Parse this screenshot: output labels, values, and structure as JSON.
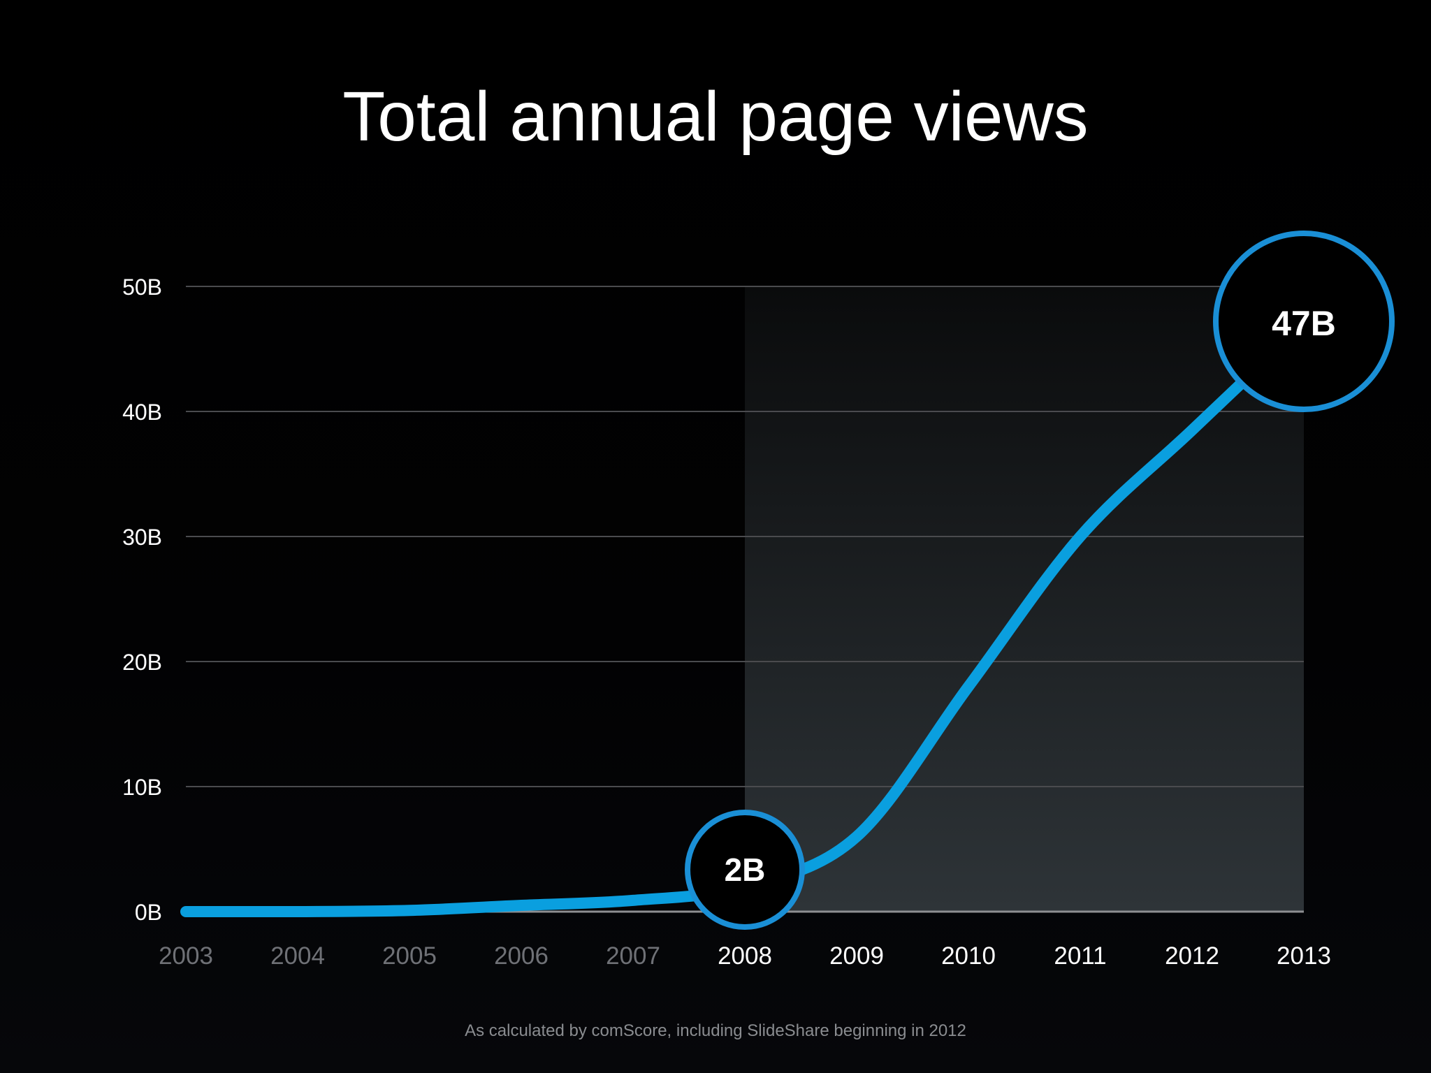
{
  "slide": {
    "title": "Total annual page views",
    "footnote": "As calculated by comScore, including SlideShare beginning in 2012"
  },
  "chart_data": {
    "type": "line",
    "title": "Total annual page views",
    "xlabel": "",
    "ylabel": "",
    "x": [
      "2003",
      "2004",
      "2005",
      "2006",
      "2007",
      "2008",
      "2009",
      "2010",
      "2011",
      "2012",
      "2013"
    ],
    "series": [
      {
        "values": [
          0,
          0,
          0.1,
          0.5,
          0.9,
          2,
          6,
          18,
          30,
          38.5,
          47
        ],
        "color": "#0a9fdf"
      }
    ],
    "ylim": [
      0,
      50
    ],
    "yticks": [
      0,
      10,
      20,
      30,
      40,
      50
    ],
    "ytick_labels": [
      "0B",
      "10B",
      "20B",
      "30B",
      "40B",
      "50B"
    ],
    "grid": true,
    "highlight_range": [
      "2008",
      "2013"
    ],
    "dim_tick_color": "#6f7176",
    "bright_tick_color": "#ffffff",
    "callouts": [
      {
        "x": "2008",
        "value": 2,
        "label": "2B"
      },
      {
        "x": "2013",
        "value": 47,
        "label": "47B"
      }
    ]
  }
}
